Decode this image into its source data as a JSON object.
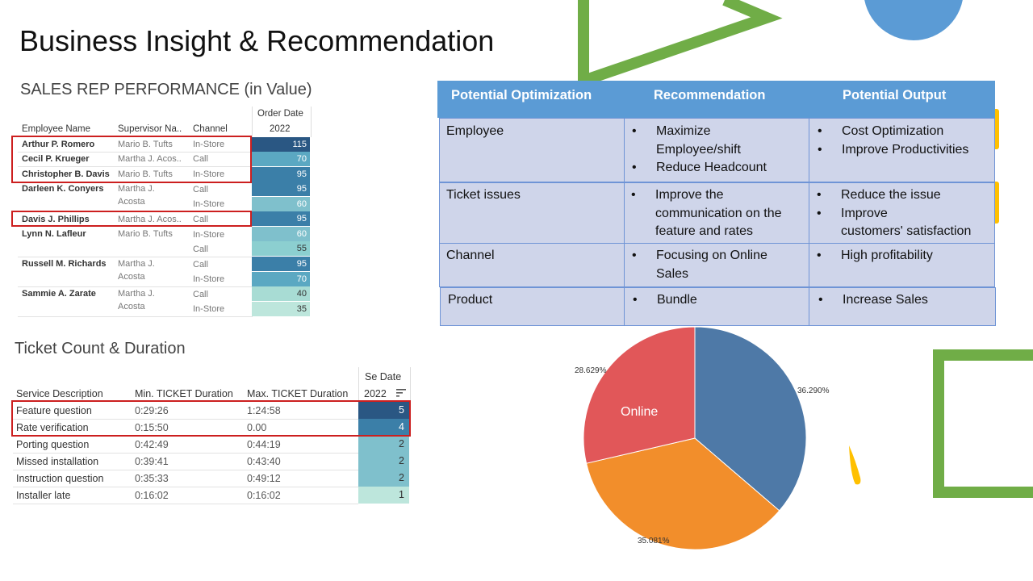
{
  "slide_title": "Business Insight & Recommendation",
  "sales": {
    "title": "SALES REP PERFORMANCE (in Value)",
    "headers": {
      "employee": "Employee Name",
      "supervisor": "Supervisor Na..",
      "channel": "Channel",
      "order_date": "Order Date",
      "year": "2022"
    },
    "rows": [
      {
        "name": "Arthur P. Romero",
        "supervisor": "Mario B. Tufts",
        "channel": "In-Store",
        "value": "115"
      },
      {
        "name": "Cecil P. Krueger",
        "supervisor": "Martha J. Acos..",
        "channel": "Call",
        "value": "70"
      },
      {
        "name": "Christopher B. Davis",
        "supervisor": "Mario B. Tufts",
        "channel": "In-Store",
        "value": "95"
      },
      {
        "name": "Darleen K. Conyers",
        "supervisor_l1": "Martha J.",
        "supervisor_l2": "Acosta",
        "channel_1": "Call",
        "value_1": "95",
        "channel_2": "In-Store",
        "value_2": "60"
      },
      {
        "name": "Davis J. Phillips",
        "supervisor": "Martha J. Acos..",
        "channel": "Call",
        "value": "95"
      },
      {
        "name": "Lynn N. Lafleur",
        "supervisor": "Mario B. Tufts",
        "channel_1": "In-Store",
        "value_1": "60",
        "channel_2": "Call",
        "value_2": "55"
      },
      {
        "name": "Russell M. Richards",
        "supervisor_l1": "Martha J.",
        "supervisor_l2": "Acosta",
        "channel_1": "Call",
        "value_1": "95",
        "channel_2": "In-Store",
        "value_2": "70"
      },
      {
        "name": "Sammie A. Zarate",
        "supervisor_l1": "Martha J.",
        "supervisor_l2": "Acosta",
        "channel_1": "Call",
        "value_1": "40",
        "channel_2": "In-Store",
        "value_2": "35"
      }
    ]
  },
  "tickets": {
    "title": "Ticket Count & Duration",
    "headers": {
      "service": "Service Description",
      "min": "Min. TICKET Duration",
      "max": "Max. TICKET Duration",
      "se_date": "Se Date",
      "year": "2022"
    },
    "rows": [
      {
        "service": "Feature question",
        "min": "0:29:26",
        "max": "1:24:58",
        "count": "5"
      },
      {
        "service": "Rate verification",
        "min": "0:15:50",
        "max": "0.00",
        "count": "4"
      },
      {
        "service": "Porting question",
        "min": "0:42:49",
        "max": "0:44:19",
        "count": "2"
      },
      {
        "service": "Missed installation",
        "min": "0:39:41",
        "max": "0:43:40",
        "count": "2"
      },
      {
        "service": "Instruction question",
        "min": "0:35:33",
        "max": "0:49:12",
        "count": "2"
      },
      {
        "service": "Installer late",
        "min": "0:16:02",
        "max": "0:16:02",
        "count": "1"
      }
    ]
  },
  "recommendations": {
    "headers": {
      "optimization": "Potential  Optimization",
      "recommendation": "Recommendation",
      "output": "Potential  Output"
    },
    "rows": [
      {
        "area": "Employee",
        "rec": [
          "Maximize",
          "Employee/shift",
          "Reduce Headcount"
        ],
        "out": [
          "Cost Optimization",
          "Improve Productivities"
        ]
      },
      {
        "area": "Ticket issues",
        "rec": [
          "Improve the",
          "communication on the",
          "feature and rates"
        ],
        "out": [
          "Reduce the issue",
          "Improve",
          "customers' satisfaction"
        ]
      },
      {
        "area": "Channel",
        "rec": [
          "Focusing on Online",
          "Sales"
        ],
        "out": [
          "High profitability"
        ]
      },
      {
        "area": "Product",
        "rec": [
          "Bundle"
        ],
        "out": [
          "Increase Sales"
        ]
      }
    ],
    "bullet": "•"
  },
  "chart_data": {
    "type": "pie",
    "slices": [
      {
        "label": "36.290%",
        "value": 36.29,
        "color": "#4e79a7"
      },
      {
        "label": "35.081%",
        "value": 35.081,
        "color": "#f28e2b"
      },
      {
        "label": "28.629%",
        "value": 28.629,
        "color": "#e15759",
        "inner_label": "Online"
      }
    ]
  },
  "sort_icon": "sort-descending-icon",
  "colors": {
    "header_blue": "#5b9bd5",
    "row_fill": "#cfd5ea",
    "highlight_red": "#cc1f1f",
    "deco_green": "#70ad47",
    "deco_blue": "#5b9bd5",
    "deco_yellow": "#ffc000"
  }
}
